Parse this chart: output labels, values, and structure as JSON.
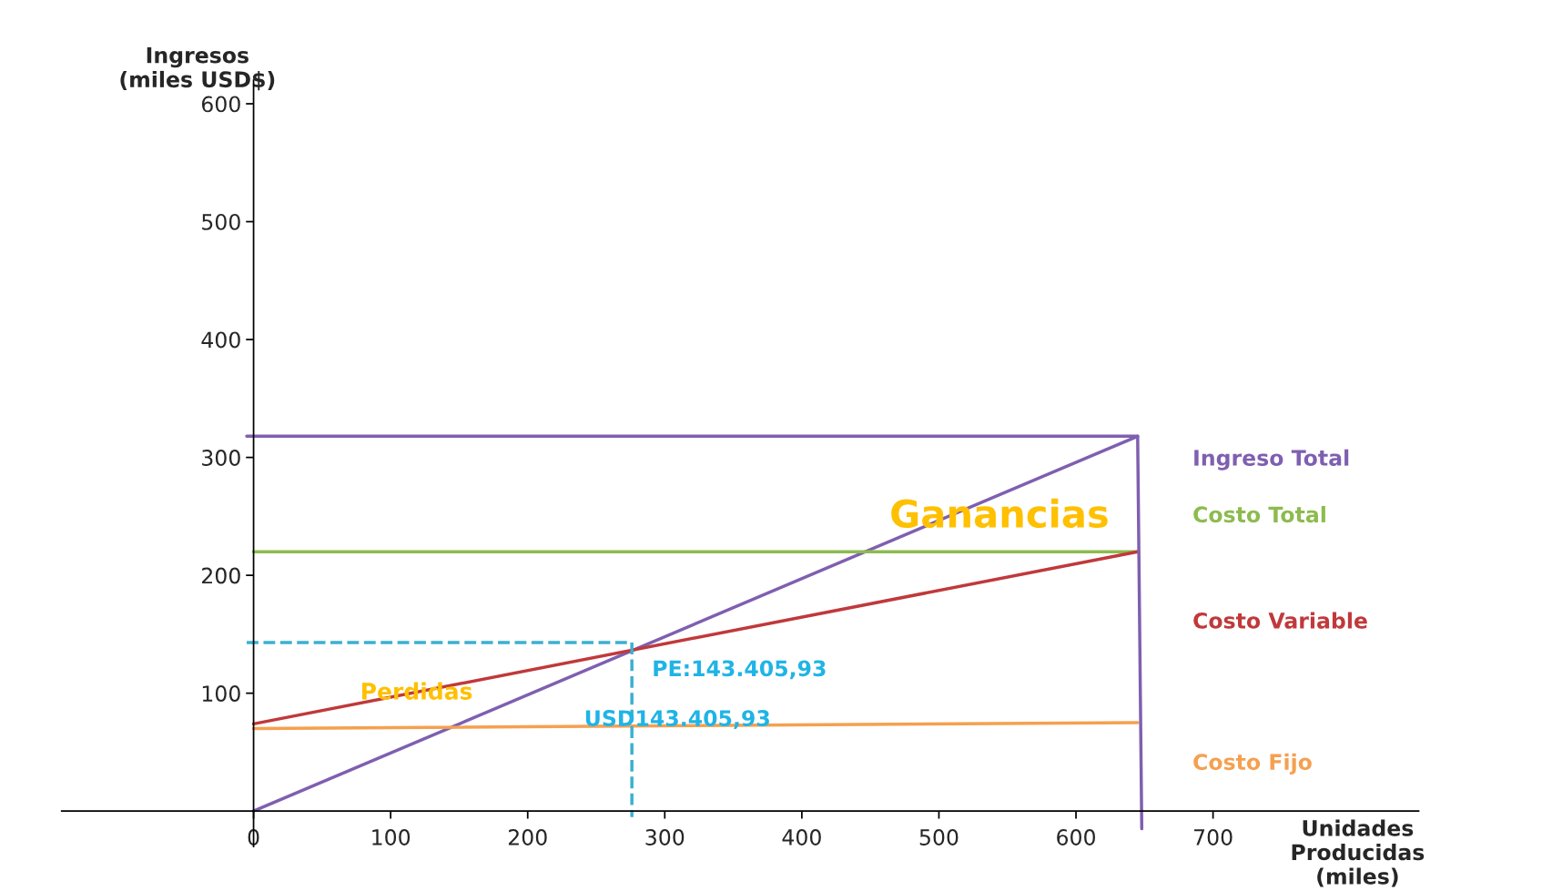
{
  "chart_data": {
    "type": "line",
    "xlabel": "Unidades\nProducidas\n(miles)",
    "ylabel": "Ingresos\n(miles USD$)",
    "xlim": [
      -140,
      850
    ],
    "ylim": [
      -30,
      620
    ],
    "xticks": [
      0,
      100,
      200,
      300,
      400,
      500,
      600,
      700
    ],
    "yticks": [
      100,
      200,
      300,
      400,
      500,
      600
    ],
    "grid": false,
    "legend": false,
    "marker": "none",
    "series": [
      {
        "name": "Ingreso Total",
        "color": "#7f5fb0",
        "x": [
          0,
          645
        ],
        "values": [
          0,
          318
        ]
      },
      {
        "name": "Costo Total",
        "color": "#8dbb4f",
        "x": [
          0,
          645
        ],
        "values": [
          220,
          220
        ]
      },
      {
        "name": "Costo Variable",
        "color": "#c0393b",
        "x": [
          0,
          645
        ],
        "values": [
          74,
          220
        ]
      },
      {
        "name": "Costo Fijo",
        "color": "#f5a050",
        "x": [
          0,
          645
        ],
        "values": [
          70,
          75
        ]
      },
      {
        "color": "#7f5fb0",
        "x": [
          -5,
          645,
          648
        ],
        "values": [
          318,
          318,
          -15
        ]
      },
      {
        "color": "#3bb0d0",
        "x": [
          -5,
          276,
          276
        ],
        "values": [
          143,
          143,
          -5
        ],
        "line_style": "dashed"
      }
    ],
    "annotations": [
      "Ganancias",
      "Perdidas",
      "PE:143.405,93",
      "USD143.405,93"
    ]
  }
}
